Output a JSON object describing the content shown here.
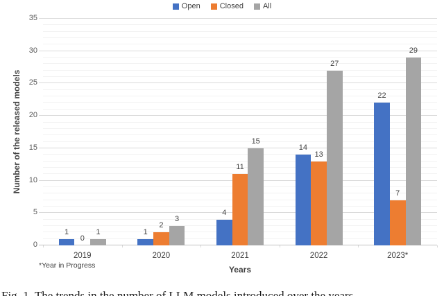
{
  "figure": {
    "footnote": "*Year in Progress",
    "caption": "Fig. 1. The trends in the number of LLM models introduced over the years."
  },
  "chart_data": {
    "type": "bar",
    "title": "",
    "categories": [
      "2019",
      "2020",
      "2021",
      "2022",
      "2023*"
    ],
    "series": [
      {
        "name": "Open",
        "color": "#4472C4",
        "values": [
          1,
          1,
          4,
          14,
          22
        ]
      },
      {
        "name": "Closed",
        "color": "#ED7D31",
        "values": [
          0,
          2,
          11,
          13,
          7
        ]
      },
      {
        "name": "All",
        "color": "#A5A5A5",
        "values": [
          1,
          3,
          15,
          27,
          29
        ]
      }
    ],
    "xlabel": "Years",
    "ylabel": "Number of the released models",
    "ylim": [
      0,
      35
    ],
    "y_major_tick": 5,
    "y_minor_tick": 1,
    "grid": true,
    "legend_position": "top",
    "data_labels": true
  }
}
